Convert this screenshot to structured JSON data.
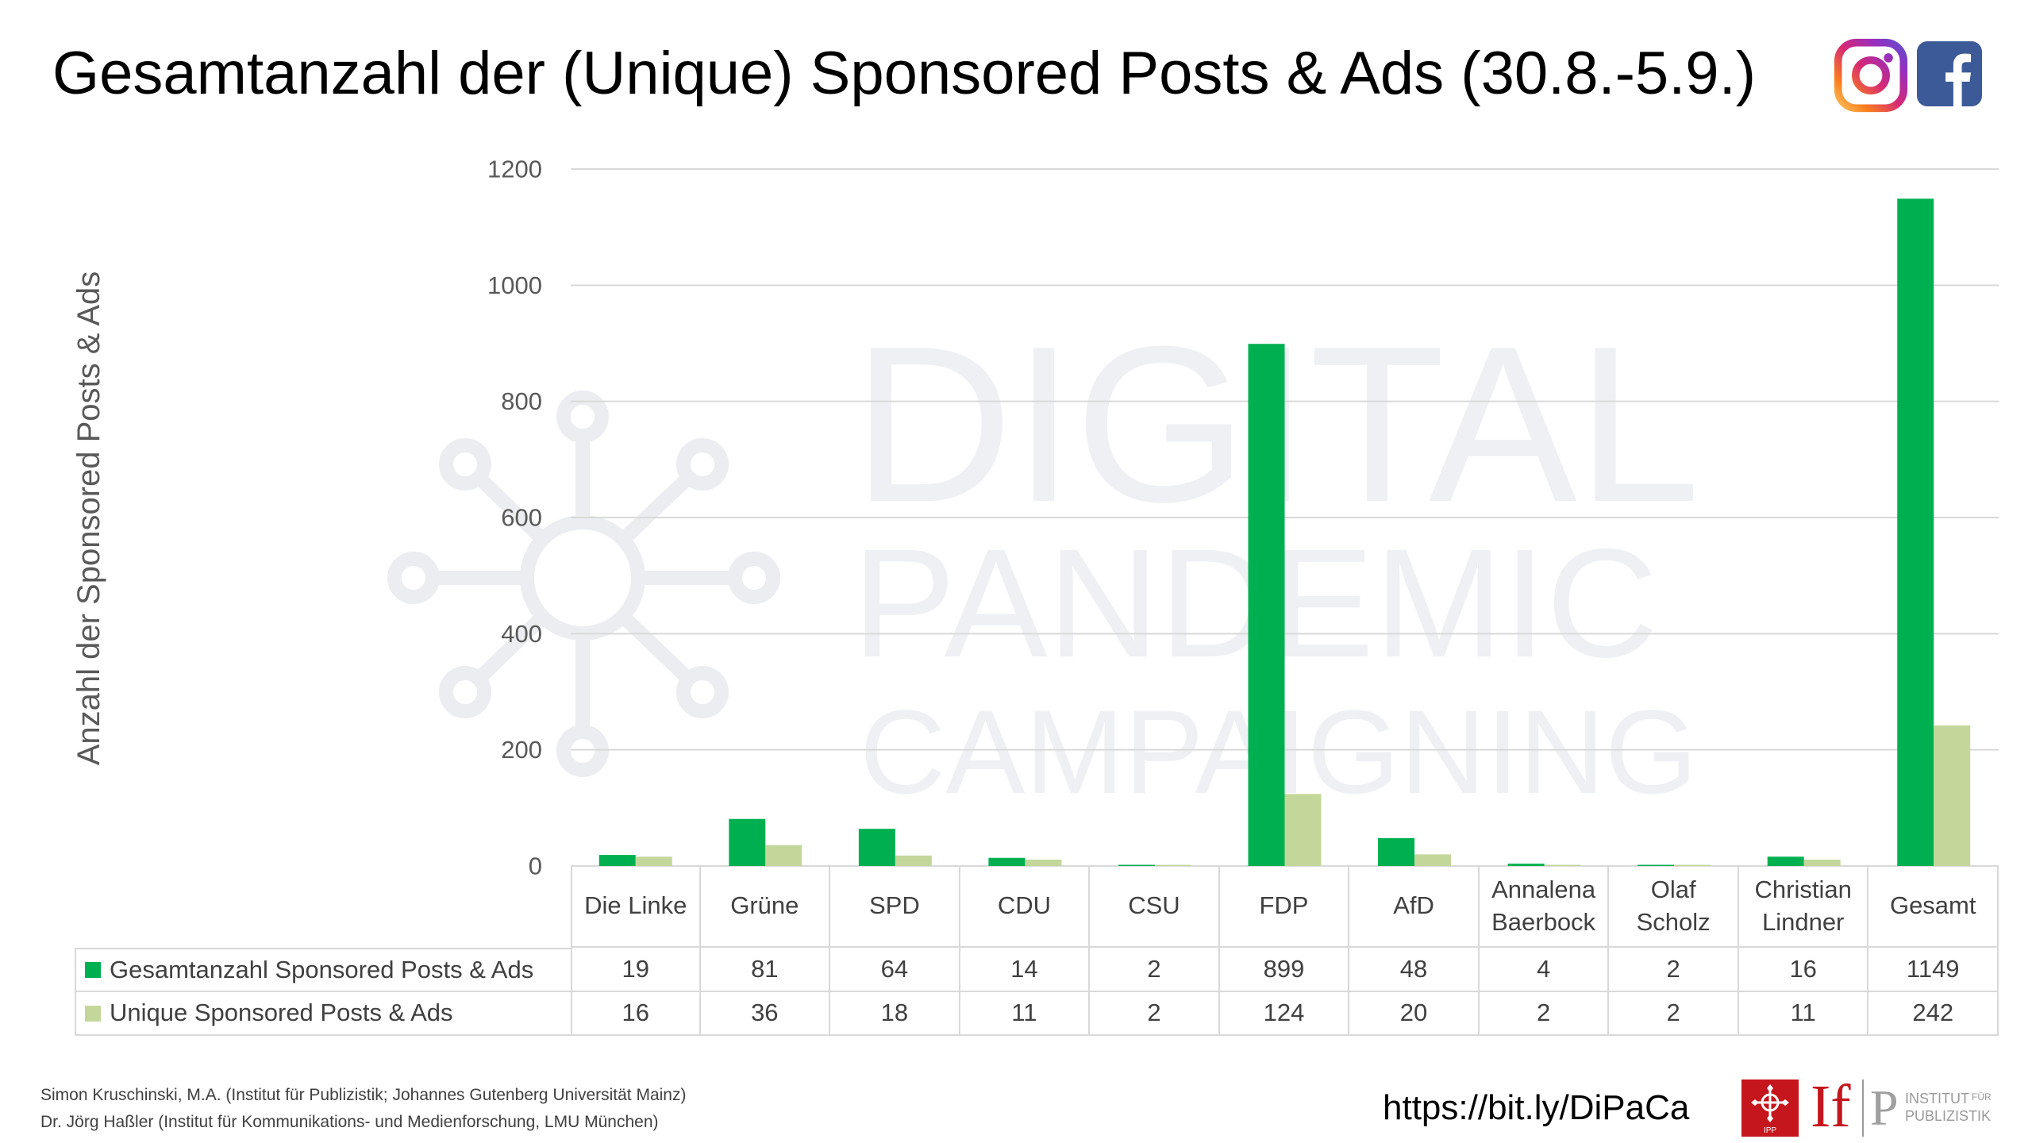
{
  "chart_data": {
    "type": "bar",
    "title": "Gesamtanzahl der (Unique) Sponsored Posts & Ads (30.8.-5.9.)",
    "ylabel": "Anzahl der Sponsored Posts & Ads",
    "categories": [
      "Die Linke",
      "Grüne",
      "SPD",
      "CDU",
      "CSU",
      "FDP",
      "AfD",
      "Annalena Baerbock",
      "Olaf Scholz",
      "Christian Lindner",
      "Gesamt"
    ],
    "series": [
      {
        "name": "Gesamtanzahl Sponsored Posts & Ads",
        "color": "#00B050",
        "values": [
          19,
          81,
          64,
          14,
          2,
          899,
          48,
          4,
          2,
          16,
          1149
        ]
      },
      {
        "name": "Unique Sponsored Posts & Ads",
        "color": "#C4D79B",
        "values": [
          16,
          36,
          18,
          11,
          2,
          124,
          20,
          2,
          2,
          11,
          242
        ]
      }
    ],
    "ylim": [
      0,
      1200
    ],
    "yticks": [
      0,
      200,
      400,
      600,
      800,
      1000,
      1200
    ],
    "grid": true,
    "legend": "bottom-left"
  },
  "header_icons": [
    "instagram-icon",
    "facebook-icon"
  ],
  "watermark": {
    "lines": [
      "DIGITAL",
      "PANDEMIC",
      "CAMPAIGNING"
    ],
    "icon": "virus-network-icon"
  },
  "footer": {
    "credits": [
      "Simon Kruschinski, M.A. (Institut für Publizistik; Johannes Gutenberg Universität Mainz)",
      "Dr. Jörg Haßler (Institut für Kommunikations- und Medienforschung, LMU München)"
    ],
    "link": "https://bit.ly/DiPaCa"
  },
  "logos": {
    "ipp": {
      "icon": "ipp-emblem-icon",
      "text": "IPP"
    },
    "ifp": {
      "if_mark": "If",
      "p_mark": "P",
      "line1": "INSTITUT",
      "line1_small": "FÜR",
      "line2": "PUBLIZISTIK"
    }
  },
  "colors": {
    "gridline": "#D9D9D9",
    "text": "#404040",
    "watermark": "#EEF0F4",
    "ifp_red": "#C4161C",
    "facebook_blue": "#3D5A98"
  }
}
